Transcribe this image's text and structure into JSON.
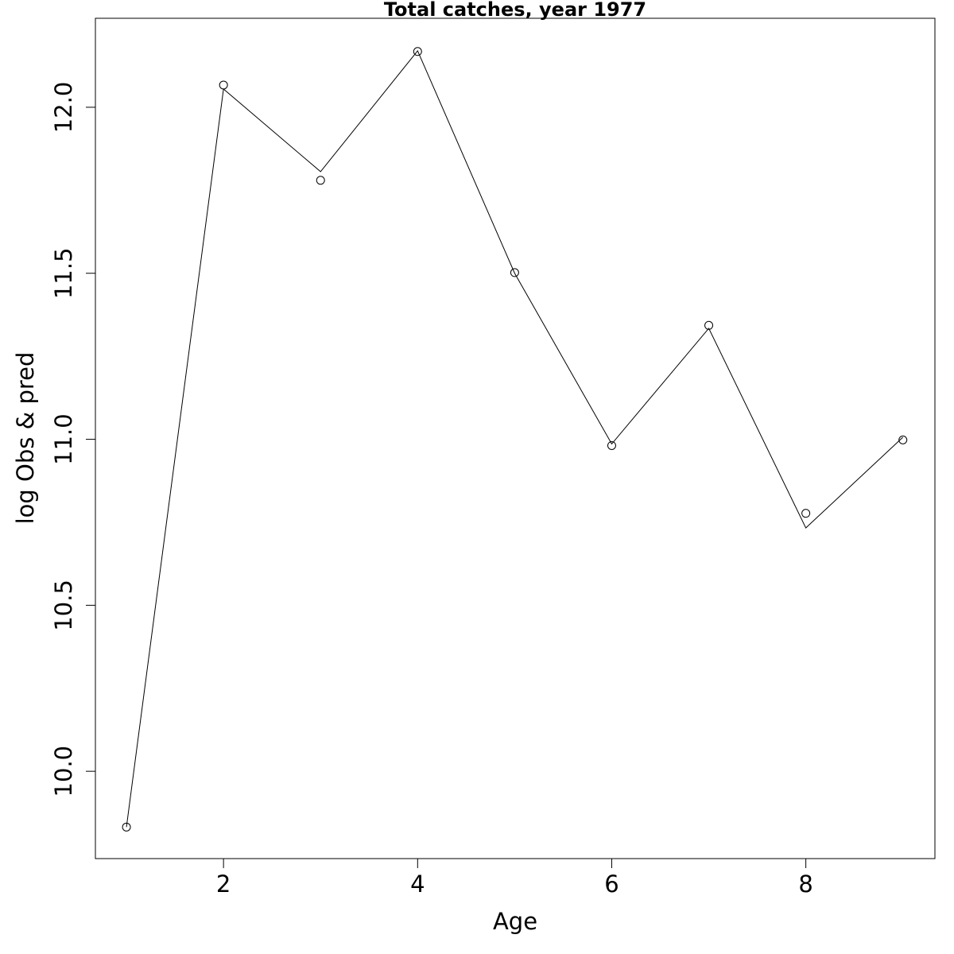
{
  "chart_data": {
    "type": "line",
    "title": "Total catches, year 1977",
    "x_label": "Age",
    "y_label": "log Obs & pred",
    "x": [
      1,
      2,
      3,
      4,
      5,
      6,
      7,
      8,
      9
    ],
    "series": [
      {
        "style": "points",
        "color": "#000000",
        "values": [
          9.832,
          12.067,
          11.78,
          12.168,
          11.502,
          10.981,
          11.343,
          10.777,
          10.998
        ]
      },
      {
        "style": "line",
        "color": "#000000",
        "values": [
          9.832,
          12.055,
          11.806,
          12.17,
          11.5,
          10.986,
          11.334,
          10.733,
          11.006
        ]
      }
    ],
    "xlim": [
      0.68,
      9.33
    ],
    "ylim": [
      9.737,
      12.268
    ],
    "xticks": [
      2,
      4,
      6,
      8
    ],
    "yticks": [
      {
        "value": 10,
        "label": "10.0"
      },
      10.5,
      {
        "value": 11,
        "label": "11.0"
      },
      11.5,
      {
        "value": 12,
        "label": "12.0"
      }
    ],
    "grid": false
  }
}
